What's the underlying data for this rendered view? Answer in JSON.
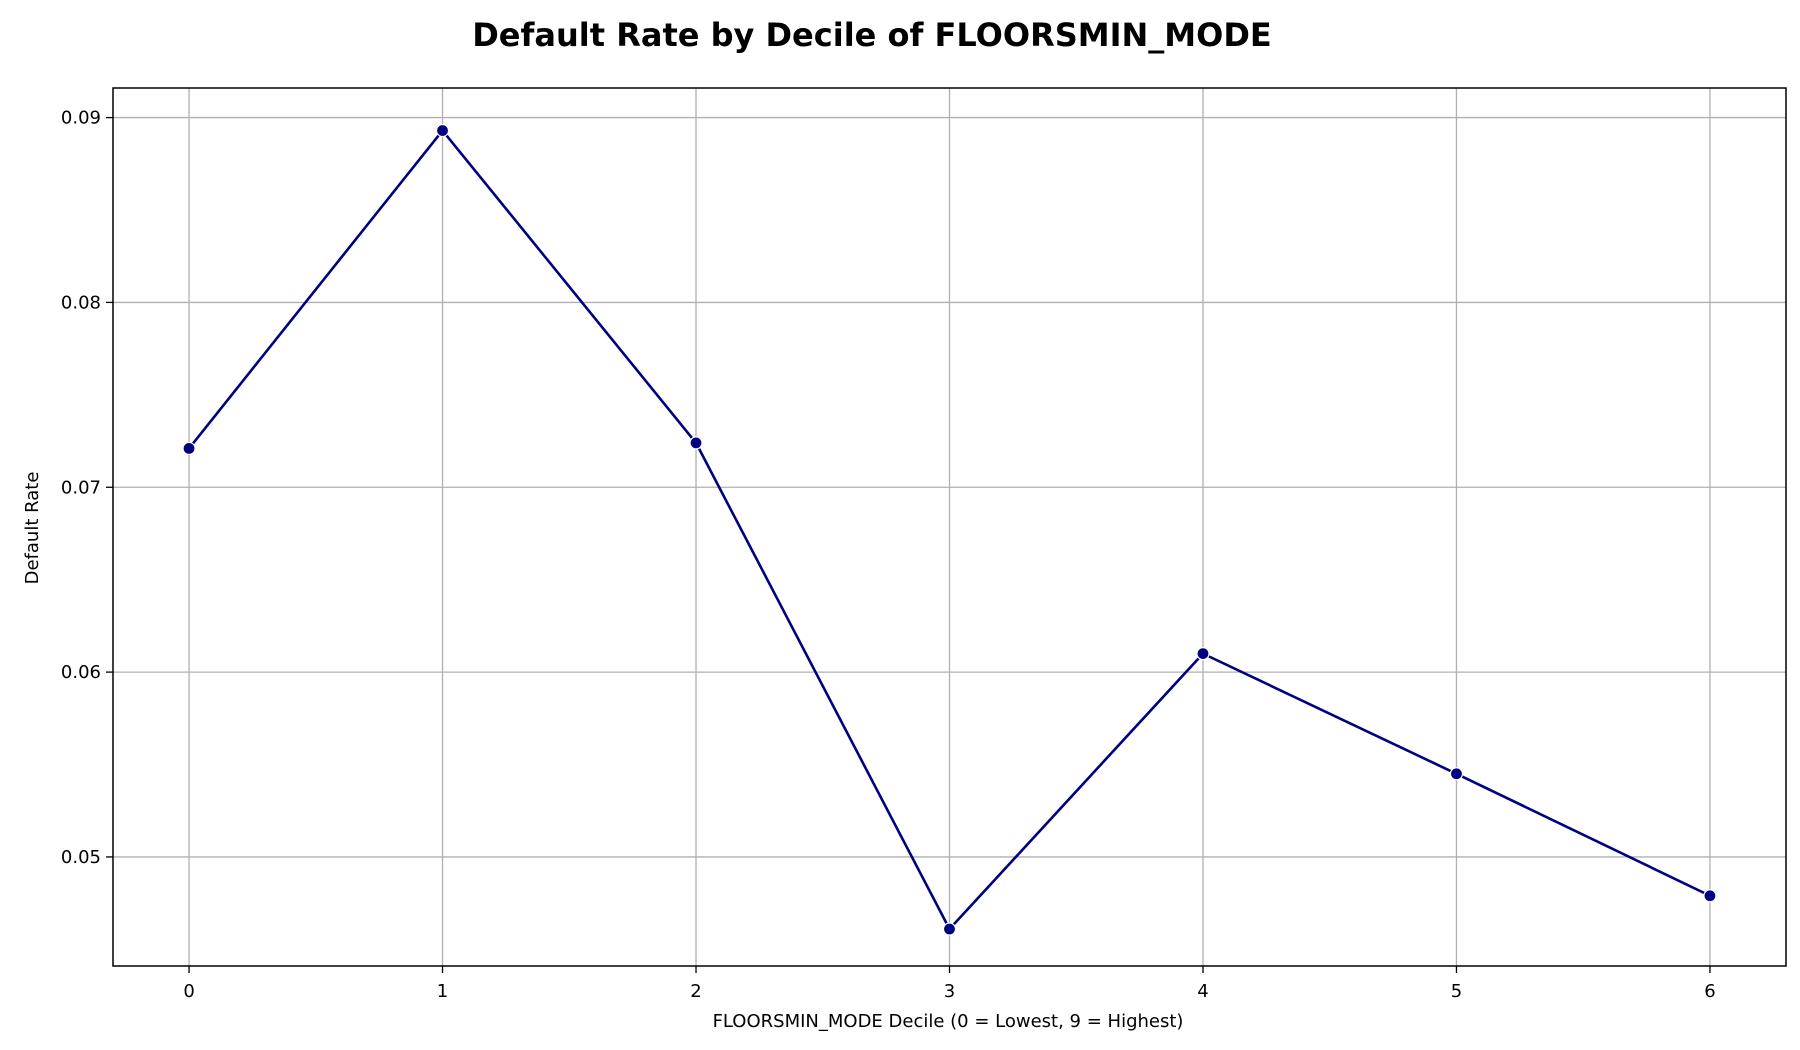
{
  "chart_data": {
    "type": "line",
    "title": "Default Rate by Decile of FLOORSMIN_MODE",
    "xlabel": "FLOORSMIN_MODE Decile (0 = Lowest, 9 = Highest)",
    "ylabel": "Default Rate",
    "x": [
      0,
      1,
      2,
      3,
      4,
      5,
      6
    ],
    "x_tick_labels": [
      "0",
      "1",
      "2",
      "3",
      "4",
      "5",
      "6"
    ],
    "series": [
      {
        "values": [
          0.0721,
          0.0893,
          0.0724,
          0.0461,
          0.061,
          0.0545,
          0.0479
        ],
        "color": "#000080"
      }
    ],
    "xlim": [
      -0.3,
      6.3
    ],
    "ylim": [
      0.0441,
      0.0916
    ],
    "y_ticks": [
      0.05,
      0.06,
      0.07,
      0.08,
      0.09
    ],
    "y_tick_labels": [
      "0.05",
      "0.06",
      "0.07",
      "0.08",
      "0.09"
    ],
    "grid": true,
    "marker": "circle",
    "colors": {
      "line": "#000080",
      "grid": "#b0b0b0",
      "frame": "#000000"
    }
  }
}
